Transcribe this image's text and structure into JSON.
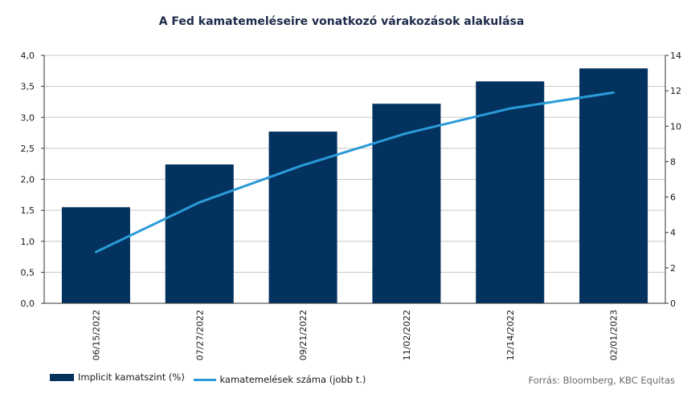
{
  "chart_data": {
    "type": "bar",
    "title": "A Fed kamatemeléseire vonatkozó várakozások alakulása",
    "categories": [
      "06/15/2022",
      "07/27/2022",
      "09/21/2022",
      "11/02/2022",
      "12/14/2022",
      "02/01/2023"
    ],
    "series": [
      {
        "name": "Implicit kamatszint (%)",
        "type": "bar",
        "axis": "left",
        "color": "#04325f",
        "values": [
          1.55,
          2.24,
          2.77,
          3.22,
          3.58,
          3.79
        ]
      },
      {
        "name": "kamatemelések száma (jobb t.)",
        "type": "line",
        "axis": "right",
        "color": "#2a9bd8",
        "values": [
          2.9,
          5.7,
          7.8,
          9.6,
          11.0,
          11.9
        ]
      }
    ],
    "y_left": {
      "ylim": [
        0,
        4
      ],
      "ticks": [
        "0,0",
        "0,5",
        "1,0",
        "1,5",
        "2,0",
        "2,5",
        "3,0",
        "3,5",
        "4,0"
      ]
    },
    "y_right": {
      "ylim": [
        0,
        14
      ],
      "ticks": [
        "0",
        "2",
        "4",
        "6",
        "8",
        "10",
        "12",
        "14"
      ]
    },
    "grid": true,
    "legend_position": "bottom-left",
    "source": "Forrás: Bloomberg, KBC Equitas"
  }
}
